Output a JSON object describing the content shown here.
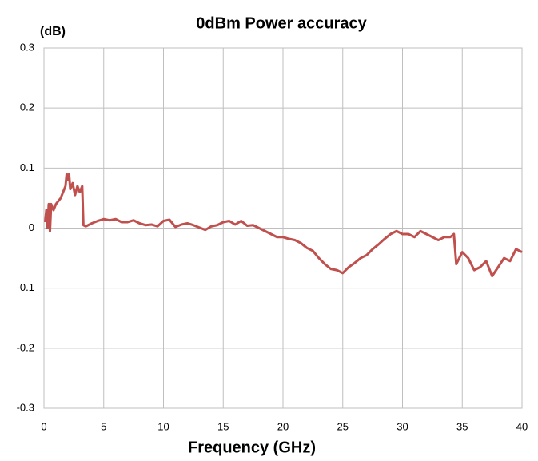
{
  "chart_data": {
    "type": "line",
    "title": "0dBm Power accuracy",
    "y_label": "(dB)",
    "x_label": "Frequency (GHz)",
    "color": "#c0504d",
    "grid": true,
    "x": [
      0.1,
      0.2,
      0.3,
      0.4,
      0.5,
      0.6,
      0.8,
      1.0,
      1.2,
      1.4,
      1.6,
      1.8,
      1.9,
      2.0,
      2.1,
      2.2,
      2.4,
      2.6,
      2.8,
      3.0,
      3.2,
      3.3,
      3.5,
      4.0,
      4.5,
      5.0,
      5.5,
      6.0,
      6.5,
      7.0,
      7.5,
      8.0,
      8.5,
      9.0,
      9.5,
      10.0,
      10.5,
      11.0,
      11.5,
      12.0,
      12.5,
      13.0,
      13.5,
      14.0,
      14.5,
      15.0,
      15.5,
      16.0,
      16.5,
      17.0,
      17.5,
      18.0,
      18.5,
      19.0,
      19.5,
      20.0,
      20.5,
      21.0,
      21.5,
      22.0,
      22.5,
      23.0,
      23.5,
      24.0,
      24.5,
      25.0,
      25.5,
      26.0,
      26.5,
      27.0,
      27.5,
      28.0,
      28.5,
      29.0,
      29.5,
      30.0,
      30.5,
      31.0,
      31.5,
      32.0,
      32.5,
      33.0,
      33.5,
      34.0,
      34.3,
      34.5,
      35.0,
      35.5,
      36.0,
      36.5,
      37.0,
      37.5,
      38.0,
      38.5,
      39.0,
      39.5,
      40.0
    ],
    "values": [
      0.01,
      0.03,
      0.0,
      0.04,
      -0.005,
      0.04,
      0.03,
      0.04,
      0.045,
      0.05,
      0.06,
      0.07,
      0.09,
      0.08,
      0.09,
      0.065,
      0.075,
      0.055,
      0.07,
      0.06,
      0.07,
      0.005,
      0.003,
      0.008,
      0.012,
      0.015,
      0.013,
      0.015,
      0.01,
      0.01,
      0.013,
      0.008,
      0.005,
      0.006,
      0.003,
      0.012,
      0.014,
      0.002,
      0.006,
      0.008,
      0.005,
      0.001,
      -0.003,
      0.003,
      0.005,
      0.01,
      0.012,
      0.006,
      0.012,
      0.004,
      0.005,
      0.0,
      -0.005,
      -0.01,
      -0.015,
      -0.015,
      -0.018,
      -0.02,
      -0.025,
      -0.033,
      -0.038,
      -0.05,
      -0.06,
      -0.068,
      -0.07,
      -0.075,
      -0.065,
      -0.058,
      -0.05,
      -0.045,
      -0.035,
      -0.027,
      -0.018,
      -0.01,
      -0.005,
      -0.01,
      -0.01,
      -0.015,
      -0.005,
      -0.01,
      -0.015,
      -0.02,
      -0.015,
      -0.015,
      -0.01,
      -0.06,
      -0.04,
      -0.05,
      -0.07,
      -0.065,
      -0.055,
      -0.08,
      -0.065,
      -0.05,
      -0.055,
      -0.035,
      -0.04
    ],
    "xlim": [
      0,
      40
    ],
    "xticks": [
      0,
      5,
      10,
      15,
      20,
      25,
      30,
      35,
      40
    ],
    "ylim": [
      -0.3,
      0.3
    ],
    "yticks": [
      0.3,
      0.2,
      0.1,
      0,
      -0.1,
      -0.2,
      -0.3
    ]
  }
}
